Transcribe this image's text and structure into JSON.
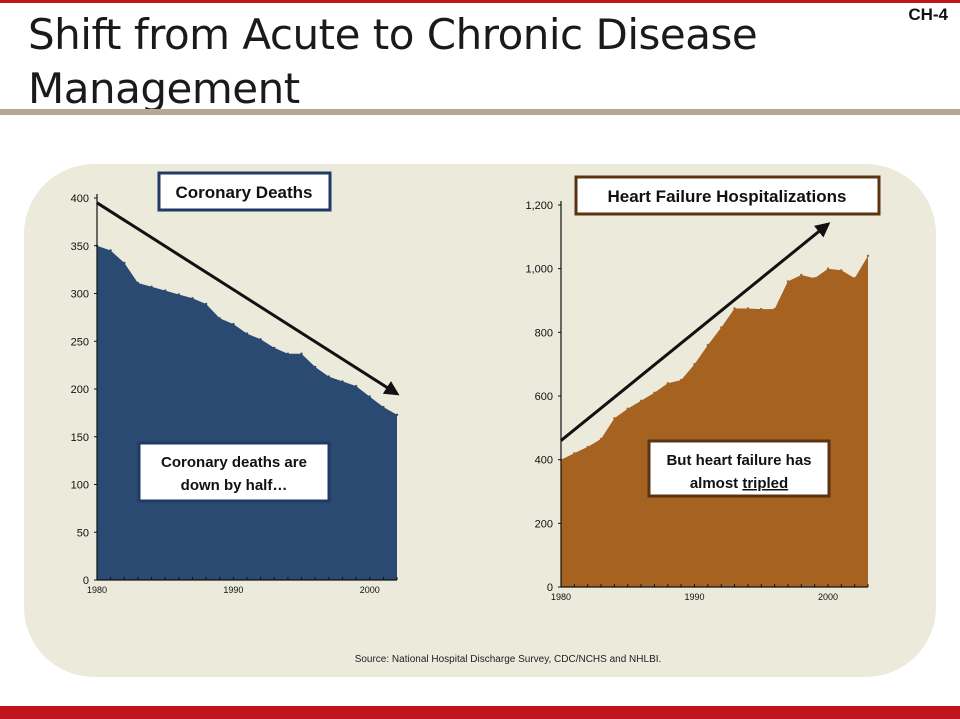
{
  "slide": {
    "title_line1": "Shift from Acute to Chronic Disease",
    "title_line2": "Management",
    "id": "CH-4",
    "source": "Source:  National Hospital Discharge Survey, CDC/NCHS and NHLBI.",
    "colors": {
      "accent_bar": "#c0141c",
      "panel": "#eceadb",
      "rule": "#b2aa96"
    }
  },
  "chart_data": [
    {
      "type": "area",
      "title": "Coronary Deaths",
      "x": [
        1980,
        1981,
        1982,
        1983,
        1984,
        1985,
        1986,
        1987,
        1988,
        1989,
        1990,
        1991,
        1992,
        1993,
        1994,
        1995,
        1996,
        1997,
        1998,
        1999,
        2000,
        2001,
        2002
      ],
      "values": [
        350,
        345,
        332,
        311,
        307,
        303,
        299,
        295,
        289,
        274,
        268,
        258,
        252,
        243,
        237,
        237,
        223,
        213,
        208,
        203,
        192,
        181,
        173
      ],
      "ylim": [
        0,
        400
      ],
      "yticks": [
        "0",
        "50",
        "100",
        "150",
        "200",
        "250",
        "300",
        "350",
        "400"
      ],
      "xticks": [
        "1980",
        "1990",
        "2000"
      ],
      "color": "#2b4a72",
      "trend_arrow": {
        "from": [
          1980,
          395
        ],
        "to": [
          2002,
          195
        ]
      },
      "annotation": [
        "Coronary deaths are",
        "down by half…"
      ]
    },
    {
      "type": "area",
      "title": "Heart Failure Hospitalizations",
      "x": [
        1980,
        1981,
        1982,
        1983,
        1984,
        1985,
        1986,
        1987,
        1988,
        1989,
        1990,
        1991,
        1992,
        1993,
        1994,
        1995,
        1996,
        1997,
        1998,
        1999,
        2000,
        2001,
        2002,
        2003
      ],
      "values": [
        400,
        420,
        440,
        465,
        530,
        560,
        585,
        610,
        640,
        650,
        700,
        760,
        815,
        875,
        875,
        873,
        873,
        960,
        980,
        970,
        1000,
        995,
        970,
        1040
      ],
      "ylim": [
        0,
        1200
      ],
      "yticks": [
        "0",
        "200",
        "400",
        "600",
        "800",
        "1,000",
        "1,200"
      ],
      "xticks": [
        "1980",
        "1990",
        "2000"
      ],
      "color": "#a66220",
      "trend_arrow": {
        "from": [
          1980,
          460
        ],
        "to": [
          2000,
          1140
        ]
      },
      "annotation": [
        "But heart failure has",
        "almost",
        "tripled"
      ]
    }
  ]
}
